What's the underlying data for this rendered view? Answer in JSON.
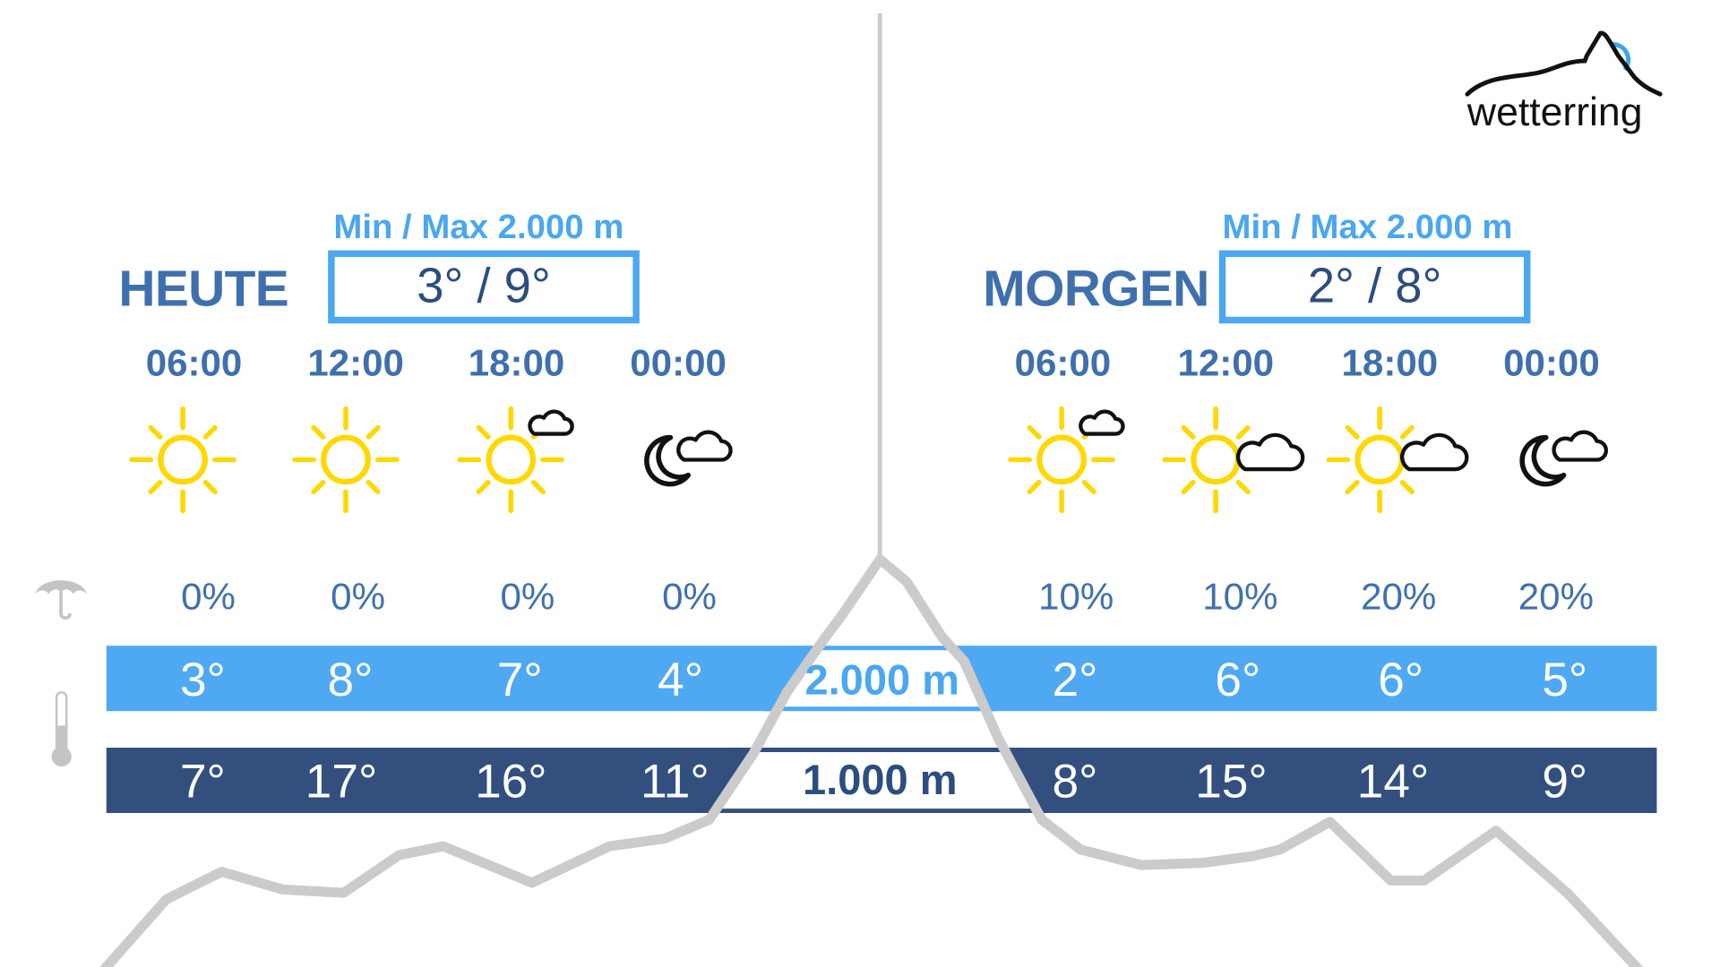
{
  "brand": {
    "logo_text": "wetterring",
    "accent": "#4aa7f0"
  },
  "colors": {
    "light_bar": "#4ea9f2",
    "dark_bar": "#324f7e",
    "title": "#3f70ae",
    "sun": "#ffd800",
    "mountain": "#cccbcb"
  },
  "days": [
    {
      "title": "HEUTE",
      "minmax_label": "Min / Max 2.000 m",
      "minmax_value": "3° / 9°",
      "slots": [
        {
          "time": "06:00",
          "icon": "sun",
          "precip": "0%",
          "t2000": "3°",
          "t1000": "7°"
        },
        {
          "time": "12:00",
          "icon": "sun",
          "precip": "0%",
          "t2000": "8°",
          "t1000": "17°"
        },
        {
          "time": "18:00",
          "icon": "sun-small-cloud",
          "precip": "0%",
          "t2000": "7°",
          "t1000": "16°"
        },
        {
          "time": "00:00",
          "icon": "moon-cloud",
          "precip": "0%",
          "t2000": "4°",
          "t1000": "11°"
        }
      ]
    },
    {
      "title": "MORGEN",
      "minmax_label": "Min / Max 2.000 m",
      "minmax_value": "2° / 8°",
      "slots": [
        {
          "time": "06:00",
          "icon": "sun-small-cloud",
          "precip": "10%",
          "t2000": "2°",
          "t1000": "8°"
        },
        {
          "time": "12:00",
          "icon": "sun-cloud",
          "precip": "10%",
          "t2000": "6°",
          "t1000": "15°"
        },
        {
          "time": "18:00",
          "icon": "sun-cloud",
          "precip": "20%",
          "t2000": "6°",
          "t1000": "14°"
        },
        {
          "time": "00:00",
          "icon": "moon-cloud",
          "precip": "20%",
          "t2000": "5°",
          "t1000": "9°"
        }
      ]
    }
  ],
  "altitudes": {
    "upper": "2.000 m",
    "lower": "1.000 m"
  },
  "row_icons": {
    "precip": "umbrella-icon",
    "temperature": "thermometer-icon"
  }
}
